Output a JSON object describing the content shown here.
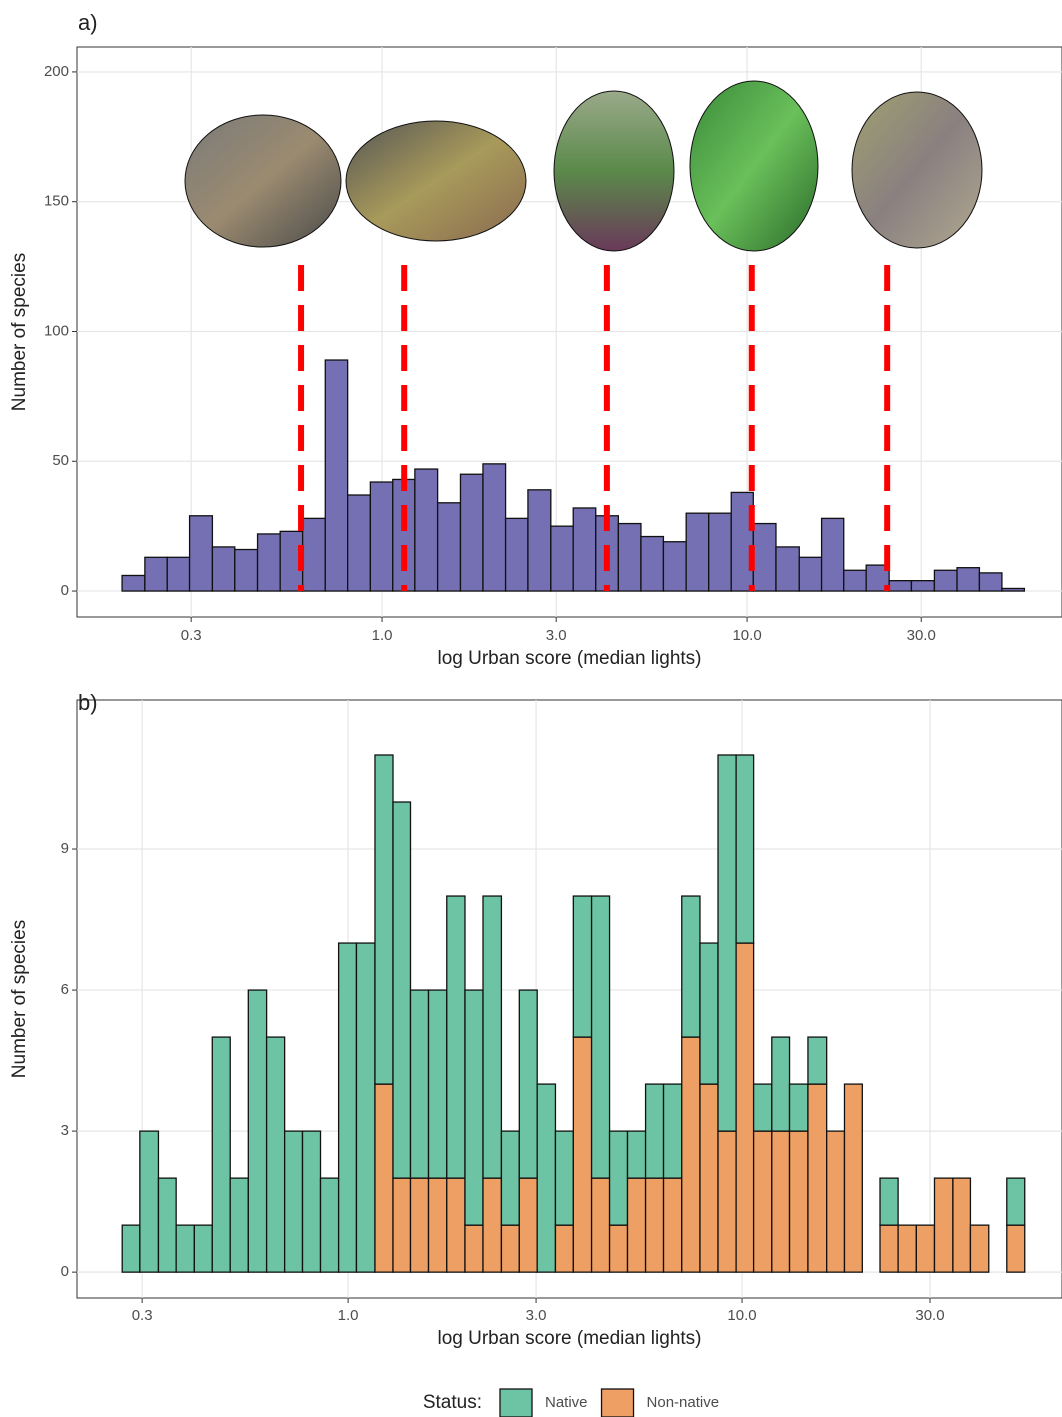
{
  "chart_data": [
    {
      "type": "histogram",
      "panel_label": "a)",
      "x_label": "log Urban score (median lights)",
      "y_label": "Number of species",
      "log_x": true,
      "grid": true,
      "color": "#7570b3",
      "vline_color": "#ff0000",
      "bins": [
        0.194,
        0.224,
        0.258,
        0.297,
        0.343,
        0.395,
        0.456,
        0.526,
        0.606,
        0.699,
        0.805,
        0.929,
        1.07,
        1.23,
        1.42,
        1.64,
        1.89,
        2.18,
        2.51,
        2.9,
        3.34,
        3.85,
        4.44,
        5.12,
        5.9,
        6.81,
        7.85,
        9.05,
        10.4,
        12.0,
        13.9,
        16.0,
        18.4,
        21.2,
        24.5,
        28.2,
        32.6,
        37.6,
        43.3,
        49.9,
        57.5
      ],
      "values": [
        6,
        13,
        13,
        29,
        17,
        16,
        22,
        23,
        28,
        89,
        37,
        42,
        43,
        47,
        34,
        45,
        49,
        28,
        39,
        25,
        32,
        29,
        26,
        21,
        19,
        30,
        30,
        38,
        26,
        17,
        13,
        28,
        8,
        10,
        4,
        4,
        8,
        9,
        7,
        1
      ],
      "vlines": [
        0.6,
        1.15,
        4.13,
        10.3,
        24.2
      ],
      "xlim": [
        0.146,
        72.9
      ],
      "xticks": [
        {
          "value": 0.3,
          "label": "0.3"
        },
        {
          "value": 1,
          "label": "1.0"
        },
        {
          "value": 3,
          "label": "3.0"
        },
        {
          "value": 10,
          "label": "10.0"
        },
        {
          "value": 30,
          "label": "30.0"
        }
      ],
      "ylim": [
        -10,
        209.6
      ],
      "yticks": [
        0,
        50,
        100,
        150,
        200
      ]
    },
    {
      "type": "histogram",
      "panel_label": "b)",
      "x_label": "log Urban score (median lights)",
      "y_label": "Number of species",
      "log_x": true,
      "grid": true,
      "stacked": true,
      "legend_title": "Status:",
      "legend_position": "bottom",
      "bins": [
        0.267,
        0.296,
        0.33,
        0.366,
        0.407,
        0.452,
        0.502,
        0.558,
        0.621,
        0.69,
        0.766,
        0.851,
        0.946,
        1.05,
        1.17,
        1.3,
        1.44,
        1.6,
        1.78,
        1.98,
        2.2,
        2.45,
        2.72,
        3.02,
        3.36,
        3.73,
        4.15,
        4.61,
        5.12,
        5.69,
        6.32,
        7.03,
        7.82,
        8.69,
        9.66,
        10.7,
        11.9,
        13.2,
        14.7,
        16.4,
        18.2,
        20.2,
        22.4,
        24.9,
        27.7,
        30.8,
        34.3,
        38.0,
        42.3,
        47.0,
        52.2
      ],
      "series": [
        {
          "name": "Native",
          "color": "#6cc4a4",
          "values": [
            1,
            3,
            2,
            1,
            1,
            5,
            2,
            6,
            5,
            3,
            3,
            2,
            7,
            7,
            7,
            8,
            4,
            4,
            6,
            5,
            6,
            2,
            4,
            4,
            2,
            3,
            6,
            2,
            1,
            2,
            2,
            3,
            3,
            8,
            4,
            1,
            2,
            1,
            1,
            0,
            0,
            0,
            1,
            0,
            0,
            0,
            0,
            0,
            0,
            1
          ]
        },
        {
          "name": "Non-native",
          "color": "#ee9f63",
          "values": [
            0,
            0,
            0,
            0,
            0,
            0,
            0,
            0,
            0,
            0,
            0,
            0,
            0,
            0,
            4,
            2,
            2,
            2,
            2,
            1,
            2,
            1,
            2,
            0,
            1,
            5,
            2,
            1,
            2,
            2,
            2,
            5,
            4,
            3,
            7,
            3,
            3,
            3,
            4,
            3,
            4,
            0,
            1,
            1,
            1,
            2,
            2,
            1,
            0,
            1
          ]
        }
      ],
      "xlim": [
        0.205,
        64.9
      ],
      "xticks": [
        {
          "value": 0.3,
          "label": "0.3"
        },
        {
          "value": 1,
          "label": "1.0"
        },
        {
          "value": 3,
          "label": "3.0"
        },
        {
          "value": 10,
          "label": "10.0"
        },
        {
          "value": 30,
          "label": "30.0"
        }
      ],
      "ylim": [
        -0.55,
        12.17
      ],
      "yticks": [
        0,
        3,
        6,
        9
      ]
    }
  ]
}
